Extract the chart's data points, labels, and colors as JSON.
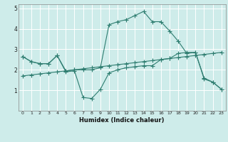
{
  "bg_color": "#ceecea",
  "grid_color": "#b0ddd8",
  "line_color": "#2e7d70",
  "xlabel": "Humidex (Indice chaleur)",
  "xlim": [
    -0.5,
    23.5
  ],
  "ylim": [
    0,
    5.2
  ],
  "xticks": [
    0,
    1,
    2,
    3,
    4,
    5,
    6,
    7,
    8,
    9,
    10,
    11,
    12,
    13,
    14,
    15,
    16,
    17,
    18,
    19,
    20,
    21,
    22,
    23
  ],
  "yticks": [
    1,
    2,
    3,
    4,
    5
  ],
  "series1_x": [
    0,
    1,
    2,
    3,
    4,
    5,
    6,
    7,
    8,
    9,
    10,
    11,
    12,
    13,
    14,
    15,
    16,
    17,
    18,
    19,
    20,
    21,
    22,
    23
  ],
  "series1_y": [
    2.65,
    2.4,
    2.3,
    2.3,
    2.7,
    1.9,
    1.95,
    0.65,
    0.6,
    1.05,
    1.85,
    2.0,
    2.1,
    2.15,
    2.2,
    2.2,
    2.5,
    2.55,
    2.8,
    2.85,
    2.85,
    1.55,
    1.4,
    1.05
  ],
  "series2_x": [
    0,
    1,
    2,
    3,
    4,
    5,
    6,
    7,
    8,
    9,
    10,
    11,
    12,
    13,
    14,
    15,
    16,
    17,
    18,
    19,
    20,
    21,
    22,
    23
  ],
  "series2_y": [
    2.65,
    2.4,
    2.3,
    2.3,
    2.7,
    1.95,
    2.0,
    2.0,
    2.0,
    2.1,
    4.2,
    4.35,
    4.45,
    4.65,
    4.85,
    4.35,
    4.35,
    3.9,
    3.4,
    2.8,
    2.85,
    1.6,
    1.4,
    1.05
  ],
  "series3_x": [
    0,
    1,
    2,
    3,
    4,
    5,
    6,
    7,
    8,
    9,
    10,
    11,
    12,
    13,
    14,
    15,
    16,
    17,
    18,
    19,
    20,
    21,
    22,
    23
  ],
  "series3_y": [
    1.7,
    1.75,
    1.8,
    1.85,
    1.9,
    1.95,
    2.0,
    2.05,
    2.1,
    2.15,
    2.2,
    2.25,
    2.3,
    2.35,
    2.4,
    2.45,
    2.5,
    2.55,
    2.6,
    2.65,
    2.7,
    2.75,
    2.8,
    2.85
  ]
}
